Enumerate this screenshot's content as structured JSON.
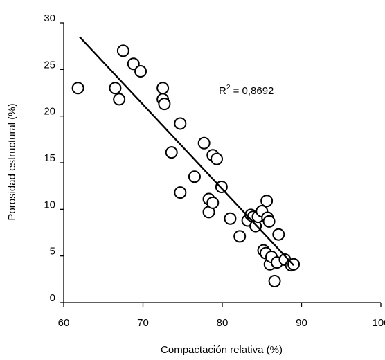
{
  "chart_data": {
    "type": "scatter",
    "title": "",
    "xlabel": "Compactación relativa (%)",
    "ylabel": "Porosidad estructural (%)",
    "xlim": [
      60,
      100
    ],
    "ylim": [
      0,
      30
    ],
    "xticks": [
      60,
      70,
      80,
      90,
      100
    ],
    "yticks": [
      0,
      5,
      10,
      15,
      20,
      25,
      30
    ],
    "grid": false,
    "legend": "none",
    "annotation": {
      "prefix": "R",
      "sup": "2",
      "suffix": " = 0,8692"
    },
    "trendline": {
      "x": [
        62,
        89
      ],
      "y": [
        28.5,
        4.0
      ]
    },
    "marker_color": "#000000",
    "series": [
      {
        "points": [
          {
            "x": 61.8,
            "y": 23.0
          },
          {
            "x": 66.5,
            "y": 23.0
          },
          {
            "x": 67.0,
            "y": 21.8
          },
          {
            "x": 67.5,
            "y": 27.0
          },
          {
            "x": 68.8,
            "y": 25.6
          },
          {
            "x": 69.7,
            "y": 24.8
          },
          {
            "x": 72.5,
            "y": 23.0
          },
          {
            "x": 72.5,
            "y": 21.8
          },
          {
            "x": 72.7,
            "y": 21.3
          },
          {
            "x": 73.6,
            "y": 16.1
          },
          {
            "x": 74.7,
            "y": 19.2
          },
          {
            "x": 74.7,
            "y": 11.8
          },
          {
            "x": 76.5,
            "y": 13.5
          },
          {
            "x": 77.7,
            "y": 17.1
          },
          {
            "x": 78.3,
            "y": 11.1
          },
          {
            "x": 78.3,
            "y": 9.7
          },
          {
            "x": 78.8,
            "y": 10.7
          },
          {
            "x": 78.8,
            "y": 15.8
          },
          {
            "x": 79.3,
            "y": 15.4
          },
          {
            "x": 79.9,
            "y": 12.4
          },
          {
            "x": 81.0,
            "y": 9.0
          },
          {
            "x": 82.2,
            "y": 7.1
          },
          {
            "x": 83.2,
            "y": 8.8
          },
          {
            "x": 83.6,
            "y": 9.4
          },
          {
            "x": 83.9,
            "y": 9.2
          },
          {
            "x": 84.2,
            "y": 8.2
          },
          {
            "x": 84.5,
            "y": 9.2
          },
          {
            "x": 85.0,
            "y": 9.8
          },
          {
            "x": 85.2,
            "y": 5.6
          },
          {
            "x": 85.5,
            "y": 5.3
          },
          {
            "x": 85.6,
            "y": 10.9
          },
          {
            "x": 85.7,
            "y": 9.1
          },
          {
            "x": 85.9,
            "y": 8.7
          },
          {
            "x": 86.0,
            "y": 4.1
          },
          {
            "x": 86.2,
            "y": 4.9
          },
          {
            "x": 86.6,
            "y": 2.3
          },
          {
            "x": 86.9,
            "y": 4.3
          },
          {
            "x": 87.1,
            "y": 7.3
          },
          {
            "x": 87.9,
            "y": 4.6
          },
          {
            "x": 88.7,
            "y": 4.0
          },
          {
            "x": 89.0,
            "y": 4.1
          }
        ]
      }
    ]
  }
}
